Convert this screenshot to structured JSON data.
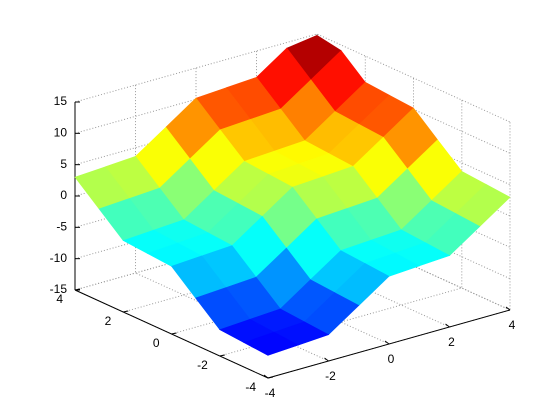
{
  "chart_data": {
    "type": "surface",
    "colormap": "jet",
    "grid": true,
    "x": [
      -4,
      -3,
      -2,
      -1,
      0,
      1,
      2,
      3,
      4
    ],
    "y": [
      -4,
      -3,
      -2,
      -1,
      0,
      1,
      2,
      3,
      4
    ],
    "z": [
      [
        -11.4,
        -11.1,
        -10.8,
        -7.5,
        -4.2,
        -3.9,
        -3.6,
        -0.3,
        3
      ],
      [
        -11.1,
        -10.8,
        -10.5,
        -7.2,
        -3.9,
        -3.6,
        -3.3,
        0,
        3.3
      ],
      [
        -10.8,
        -10.5,
        -10.2,
        -6.9,
        -3.6,
        -3.3,
        -3,
        0.3,
        3.6
      ],
      [
        -7.5,
        -7.2,
        -6.9,
        -3.6,
        -0.3,
        0,
        0.3,
        3.6,
        6.9
      ],
      [
        -4.2,
        -3.9,
        -3.6,
        -0.3,
        3,
        3.3,
        3.6,
        6.9,
        10.2
      ],
      [
        -3.9,
        -3.6,
        -3.3,
        0,
        3.3,
        3.6,
        3.9,
        7.2,
        10.5
      ],
      [
        -3.6,
        -3.3,
        -3,
        0.3,
        3.6,
        3.9,
        4.2,
        7.5,
        10.8
      ],
      [
        -0.3,
        0,
        0.3,
        3.6,
        6.9,
        7.2,
        7.5,
        10.8,
        14.1
      ],
      [
        3,
        3.3,
        3.6,
        6.9,
        10.2,
        10.5,
        10.8,
        14.1,
        14.8
      ]
    ],
    "xlim": [
      -4,
      4
    ],
    "ylim": [
      -4,
      4
    ],
    "zlim": [
      -15,
      15
    ],
    "xticks": [
      -4,
      -2,
      0,
      2,
      4
    ],
    "yticks": [
      -4,
      -2,
      0,
      2,
      4
    ],
    "zticks": [
      -15,
      -10,
      -5,
      0,
      5,
      10,
      15
    ]
  }
}
